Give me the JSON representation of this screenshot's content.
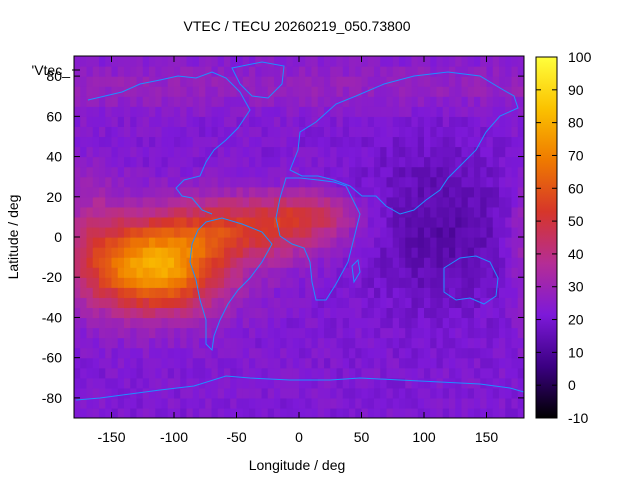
{
  "chart_data": {
    "type": "heatmap",
    "title": "VTEC / TECU 20260219_050.73800",
    "xlabel": "Longitude / deg",
    "ylabel": "Latitude / deg",
    "key_label": "'Vtec_",
    "xlim": [
      -180,
      180
    ],
    "ylim": [
      -90,
      90
    ],
    "x_ticks": [
      -150,
      -100,
      -50,
      0,
      50,
      100,
      150
    ],
    "y_ticks": [
      -80,
      -60,
      -40,
      -20,
      0,
      20,
      40,
      60,
      80
    ],
    "colorbar": {
      "min": -10,
      "max": 100,
      "ticks": [
        -10,
        0,
        10,
        20,
        30,
        40,
        50,
        60,
        70,
        80,
        90,
        100
      ]
    },
    "anomaly_peak": {
      "lon": -115,
      "lat": -15,
      "value": 78
    },
    "background_level": 22,
    "grid": false
  },
  "colors": {
    "palette_stops": [
      "#000000",
      "#3b0082",
      "#7d19d9",
      "#b52d95",
      "#d6362a",
      "#ef7a00",
      "#fbc200",
      "#ffff3c"
    ],
    "coastline": "#1e90ff"
  }
}
